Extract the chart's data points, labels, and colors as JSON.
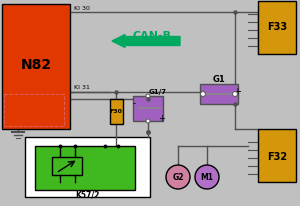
{
  "bg_color": "#c0c0c0",
  "n82_color": "#e03800",
  "f33_color": "#d4960a",
  "f32_color": "#d4960a",
  "f30_color": "#d4960a",
  "g1_color": "#a060c0",
  "k572_bg": "#ffffff",
  "k572_fill": "#40b820",
  "g2_color": "#d080a0",
  "m1_color": "#b070c8",
  "canb_color": "#00a860",
  "wire_color": "#505050",
  "labels": {
    "N82": "N82",
    "F33": "F33",
    "F32": "F32",
    "F30": "F30",
    "G1": "G1",
    "G17": "G1/7",
    "K572": "K57/2",
    "G2": "G2",
    "M1": "M1",
    "CANB": "CAN-B",
    "KI30": "KI 30",
    "KI31": "KI 31"
  }
}
